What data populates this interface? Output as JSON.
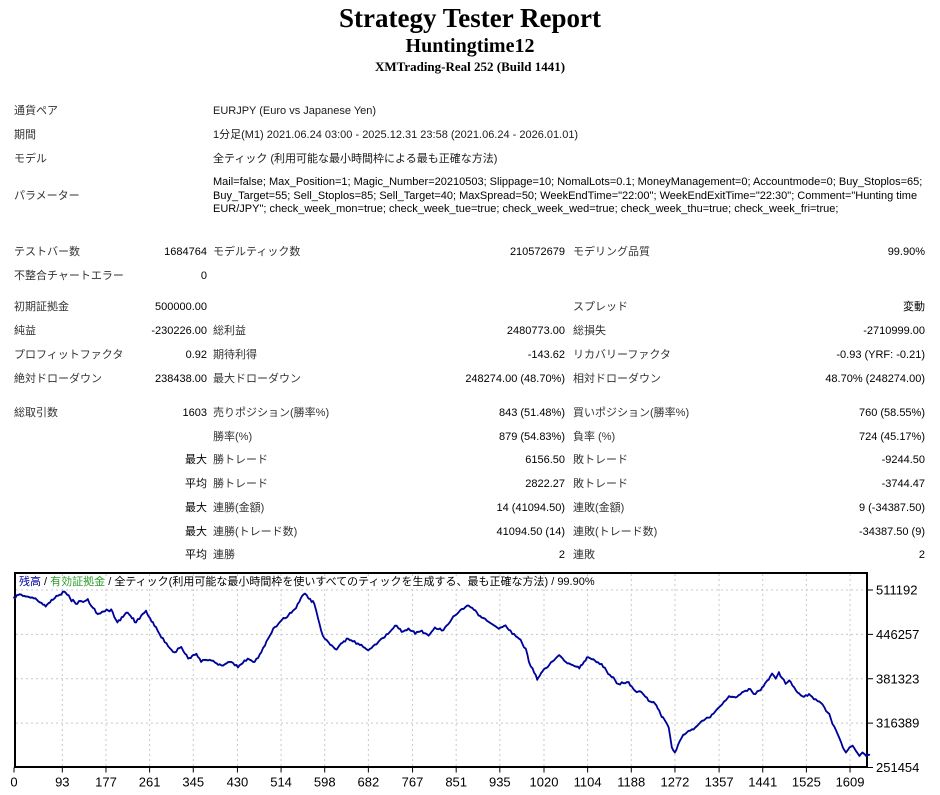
{
  "header": {
    "title": "Strategy Tester Report",
    "expert_name": "Huntingtime12",
    "server": "XMTrading-Real 252 (Build 1441)"
  },
  "info": {
    "symbol_label": "通貨ペア",
    "symbol": "EURJPY (Euro vs Japanese Yen)",
    "period_label": "期間",
    "period": "1分足(M1) 2021.06.24 03:00 - 2025.12.31 23:58 (2021.06.24 - 2026.01.01)",
    "model_label": "モデル",
    "model": "全ティック (利用可能な最小時間枠による最も正確な方法)",
    "params_label": "パラメーター",
    "params": "Mail=false; Max_Position=1; Magic_Number=20210503; Slippage=10; NomalLots=0.1; MoneyManagement=0; Accountmode=0; Buy_Stoplos=65; Buy_Target=55; Sell_Stoplos=85; Sell_Target=40; MaxSpread=50; WeekEndTime=\"22:00\"; WeekEndExitTime=\"22:30\"; Comment=\"Hunting time EUR/JPY\"; check_week_mon=true; check_week_tue=true; check_week_wed=true; check_week_thu=true; check_week_fri=true;"
  },
  "stats": {
    "bars": {
      "l1": "テストバー数",
      "v1": "1684764",
      "l2": "モデルティック数",
      "v2": "210572679",
      "l3": "モデリング品質",
      "v3": "99.90%"
    },
    "mismatch": {
      "l1": "不整合チャートエラー",
      "v1": "0",
      "l2": "",
      "v2": "",
      "l3": "",
      "v3": ""
    },
    "deposit": {
      "l1": "初期証拠金",
      "v1": "500000.00",
      "l2": "",
      "v2": "",
      "l3": "スプレッド",
      "v3": "変動"
    },
    "profit": {
      "l1": "純益",
      "v1": "-230226.00",
      "l2": "総利益",
      "v2": "2480773.00",
      "l3": "総損失",
      "v3": "-2710999.00"
    },
    "pf": {
      "l1": "プロフィットファクタ",
      "v1": "0.92",
      "l2": "期待利得",
      "v2": "-143.62",
      "l3": "リカバリーファクタ",
      "v3": "-0.93 (YRF: -0.21)"
    },
    "absdd": {
      "l1": "絶対ドローダウン",
      "v1": "238438.00",
      "l2": "最大ドローダウン",
      "v2": "248274.00 (48.70%)",
      "l3": "相対ドローダウン",
      "v3": "48.70% (248274.00)"
    },
    "trades": {
      "l1": "総取引数",
      "v1": "1603",
      "l2": "売りポジション(勝率%)",
      "v2": "843 (51.48%)",
      "l3": "買いポジション(勝率%)",
      "v3": "760 (58.55%)"
    },
    "winrate": {
      "l1": "",
      "v1": "",
      "l2": "勝率(%)",
      "v2": "879 (54.83%)",
      "l3": "負率 (%)",
      "v3": "724 (45.17%)"
    },
    "maxwin": {
      "l1": "",
      "v1": "最大",
      "l2": "勝トレード",
      "v2": "6156.50",
      "l3": "敗トレード",
      "v3": "-9244.50"
    },
    "avgwin": {
      "l1": "",
      "v1": "平均",
      "l2": "勝トレード",
      "v2": "2822.27",
      "l3": "敗トレード",
      "v3": "-3744.47"
    },
    "maxconsamt": {
      "l1": "",
      "v1": "最大",
      "l2": "連勝(金額)",
      "v2": "14 (41094.50)",
      "l3": "連敗(金額)",
      "v3": "9 (-34387.50)"
    },
    "maxconscnt": {
      "l1": "",
      "v1": "最大",
      "l2": "連勝(トレード数)",
      "v2": "41094.50 (14)",
      "l3": "連敗(トレード数)",
      "v3": "-34387.50 (9)"
    },
    "avgcons": {
      "l1": "",
      "v1": "平均",
      "l2": "連勝",
      "v2": "2",
      "l3": "連敗",
      "v3": "2"
    }
  },
  "chart_data": {
    "type": "line",
    "legend": {
      "balance_label": "残高",
      "equity_label": "有効証拠金",
      "separator": " / ",
      "model_label": "全ティック(利用可能な最小時間枠を使いすべてのティックを生成する、最も正確な方法)",
      "quality": "99.90%"
    },
    "colors": {
      "balance": "#0000A0",
      "equity": "#2e9e2e",
      "grid": "#c8c8c8",
      "border": "#000000"
    },
    "x_ticks": [
      0,
      93,
      177,
      261,
      345,
      430,
      514,
      598,
      682,
      767,
      851,
      935,
      1020,
      1104,
      1188,
      1272,
      1357,
      1441,
      1525,
      1609
    ],
    "y_ticks": [
      511192,
      446257,
      381323,
      316389,
      251454
    ],
    "xlim": [
      0,
      1660
    ],
    "ylim": [
      251454,
      537500
    ],
    "series": [
      {
        "name": "残高",
        "color": "#0000A0",
        "points": [
          [
            0,
            500000
          ],
          [
            8,
            504000
          ],
          [
            20,
            502500
          ],
          [
            35,
            500500
          ],
          [
            50,
            493000
          ],
          [
            61,
            487000
          ],
          [
            75,
            497000
          ],
          [
            85,
            503000
          ],
          [
            97,
            509000
          ],
          [
            108,
            499000
          ],
          [
            119,
            491000
          ],
          [
            130,
            495000
          ],
          [
            142,
            498000
          ],
          [
            152,
            485000
          ],
          [
            161,
            476000
          ],
          [
            175,
            480000
          ],
          [
            187,
            483000
          ],
          [
            199,
            464000
          ],
          [
            210,
            472000
          ],
          [
            219,
            478000
          ],
          [
            227,
            470000
          ],
          [
            235,
            464000
          ],
          [
            245,
            474000
          ],
          [
            254,
            481000
          ],
          [
            262,
            470000
          ],
          [
            270,
            459000
          ],
          [
            280,
            447000
          ],
          [
            290,
            435000
          ],
          [
            300,
            426000
          ],
          [
            309,
            420000
          ],
          [
            322,
            428000
          ],
          [
            335,
            411000
          ],
          [
            343,
            415000
          ],
          [
            351,
            418000
          ],
          [
            360,
            406000
          ],
          [
            370,
            409000
          ],
          [
            380,
            408000
          ],
          [
            390,
            404000
          ],
          [
            399,
            401000
          ],
          [
            409,
            404000
          ],
          [
            418,
            406000
          ],
          [
            425,
            401000
          ],
          [
            431,
            398000
          ],
          [
            440,
            404000
          ],
          [
            450,
            411000
          ],
          [
            457,
            408000
          ],
          [
            463,
            406000
          ],
          [
            470,
            412000
          ],
          [
            476,
            420000
          ],
          [
            483,
            430000
          ],
          [
            489,
            440000
          ],
          [
            496,
            449000
          ],
          [
            502,
            457000
          ],
          [
            509,
            462000
          ],
          [
            515,
            467000
          ],
          [
            522,
            470000
          ],
          [
            528,
            474000
          ],
          [
            534,
            478000
          ],
          [
            540,
            483000
          ],
          [
            546,
            491000
          ],
          [
            552,
            499000
          ],
          [
            560,
            506000
          ],
          [
            570,
            498000
          ],
          [
            578,
            491000
          ],
          [
            585,
            470000
          ],
          [
            591,
            452000
          ],
          [
            598,
            440000
          ],
          [
            605,
            435000
          ],
          [
            612,
            430000
          ],
          [
            618,
            425000
          ],
          [
            624,
            427500
          ],
          [
            632,
            434000
          ],
          [
            643,
            440000
          ],
          [
            652,
            436000
          ],
          [
            662,
            433000
          ],
          [
            672,
            428000
          ],
          [
            682,
            423000
          ],
          [
            691,
            429000
          ],
          [
            701,
            435000
          ],
          [
            710,
            441000
          ],
          [
            720,
            447000
          ],
          [
            727,
            453000
          ],
          [
            733,
            459000
          ],
          [
            740,
            455000
          ],
          [
            746,
            450000
          ],
          [
            753,
            452500
          ],
          [
            759,
            455000
          ],
          [
            766,
            451000
          ],
          [
            772,
            447000
          ],
          [
            779,
            450000
          ],
          [
            785,
            452000
          ],
          [
            791,
            448000
          ],
          [
            798,
            444500
          ],
          [
            804,
            450500
          ],
          [
            810,
            456500
          ],
          [
            817,
            454000
          ],
          [
            823,
            452000
          ],
          [
            830,
            457000
          ],
          [
            836,
            461500
          ],
          [
            842,
            468000
          ],
          [
            849,
            474000
          ],
          [
            856,
            479000
          ],
          [
            862,
            483500
          ],
          [
            869,
            486500
          ],
          [
            875,
            488500
          ],
          [
            882,
            485000
          ],
          [
            888,
            481500
          ],
          [
            894,
            474000
          ],
          [
            900,
            471000
          ],
          [
            907,
            469000
          ],
          [
            913,
            465000
          ],
          [
            920,
            461500
          ],
          [
            927,
            458000
          ],
          [
            933,
            454500
          ],
          [
            940,
            457000
          ],
          [
            946,
            459500
          ],
          [
            952,
            453000
          ],
          [
            959,
            447000
          ],
          [
            966,
            443500
          ],
          [
            972,
            440000
          ],
          [
            978,
            433000
          ],
          [
            985,
            425500
          ],
          [
            991,
            406000
          ],
          [
            998,
            396500
          ],
          [
            1004,
            387000
          ],
          [
            1007,
            380000
          ],
          [
            1012,
            386000
          ],
          [
            1017,
            392000
          ],
          [
            1024,
            397000
          ],
          [
            1030,
            401500
          ],
          [
            1037,
            407000
          ],
          [
            1043,
            411500
          ],
          [
            1049,
            416000
          ],
          [
            1056,
            411000
          ],
          [
            1062,
            406000
          ],
          [
            1068,
            404000
          ],
          [
            1075,
            401500
          ],
          [
            1082,
            399000
          ],
          [
            1088,
            396500
          ],
          [
            1094,
            402000
          ],
          [
            1100,
            408000
          ],
          [
            1105,
            413000
          ],
          [
            1112,
            410000
          ],
          [
            1118,
            408000
          ],
          [
            1124,
            405500
          ],
          [
            1131,
            403000
          ],
          [
            1140,
            393500
          ],
          [
            1150,
            384000
          ],
          [
            1157,
            379000
          ],
          [
            1163,
            374000
          ],
          [
            1173,
            375000
          ],
          [
            1183,
            376500
          ],
          [
            1189,
            370000
          ],
          [
            1195,
            364000
          ],
          [
            1202,
            363000
          ],
          [
            1208,
            361500
          ],
          [
            1215,
            355000
          ],
          [
            1221,
            349000
          ],
          [
            1228,
            347000
          ],
          [
            1234,
            344500
          ],
          [
            1239,
            337500
          ],
          [
            1244,
            330000
          ],
          [
            1249,
            325000
          ],
          [
            1253,
            320000
          ],
          [
            1257,
            315000
          ],
          [
            1260,
            310000
          ],
          [
            1263,
            295500
          ],
          [
            1266,
            281000
          ],
          [
            1272,
            273500
          ],
          [
            1278,
            284500
          ],
          [
            1285,
            295000
          ],
          [
            1291,
            300000
          ],
          [
            1298,
            305000
          ],
          [
            1305,
            307500
          ],
          [
            1311,
            310000
          ],
          [
            1318,
            315000
          ],
          [
            1324,
            320000
          ],
          [
            1330,
            322000
          ],
          [
            1337,
            324500
          ],
          [
            1343,
            329000
          ],
          [
            1350,
            334000
          ],
          [
            1356,
            339000
          ],
          [
            1363,
            344000
          ],
          [
            1370,
            350000
          ],
          [
            1376,
            356000
          ],
          [
            1382,
            355000
          ],
          [
            1389,
            354000
          ],
          [
            1395,
            357500
          ],
          [
            1401,
            361500
          ],
          [
            1408,
            364000
          ],
          [
            1414,
            366500
          ],
          [
            1420,
            363000
          ],
          [
            1427,
            359000
          ],
          [
            1434,
            364000
          ],
          [
            1440,
            369000
          ],
          [
            1445,
            374000
          ],
          [
            1450,
            379000
          ],
          [
            1455,
            384000
          ],
          [
            1459,
            389000
          ],
          [
            1463,
            385000
          ],
          [
            1466,
            381500
          ],
          [
            1469,
            386000
          ],
          [
            1472,
            391000
          ],
          [
            1478,
            382500
          ],
          [
            1485,
            374000
          ],
          [
            1489,
            376500
          ],
          [
            1492,
            379000
          ],
          [
            1498,
            371500
          ],
          [
            1505,
            364000
          ],
          [
            1511,
            360000
          ],
          [
            1517,
            356000
          ],
          [
            1524,
            357500
          ],
          [
            1530,
            359000
          ],
          [
            1536,
            355000
          ],
          [
            1543,
            351500
          ],
          [
            1550,
            348000
          ],
          [
            1556,
            344000
          ],
          [
            1560,
            339000
          ],
          [
            1563,
            334000
          ],
          [
            1566,
            332000
          ],
          [
            1569,
            330000
          ],
          [
            1572,
            323000
          ],
          [
            1575,
            315500
          ],
          [
            1579,
            311000
          ],
          [
            1582,
            306000
          ],
          [
            1585,
            300500
          ],
          [
            1588,
            295500
          ],
          [
            1592,
            288000
          ],
          [
            1595,
            281000
          ],
          [
            1598,
            277000
          ],
          [
            1601,
            273500
          ],
          [
            1605,
            277500
          ],
          [
            1608,
            281000
          ],
          [
            1611,
            282000
          ],
          [
            1614,
            283500
          ],
          [
            1617,
            280000
          ],
          [
            1620,
            276000
          ],
          [
            1624,
            272000
          ],
          [
            1627,
            268500
          ],
          [
            1630,
            271000
          ],
          [
            1633,
            273500
          ],
          [
            1637,
            271000
          ],
          [
            1640,
            268500
          ],
          [
            1643,
            270000
          ],
          [
            1646,
            270000
          ]
        ]
      },
      {
        "name": "有効証拠金",
        "color": "#2e9e2e",
        "points": "same_as_balance"
      }
    ]
  }
}
